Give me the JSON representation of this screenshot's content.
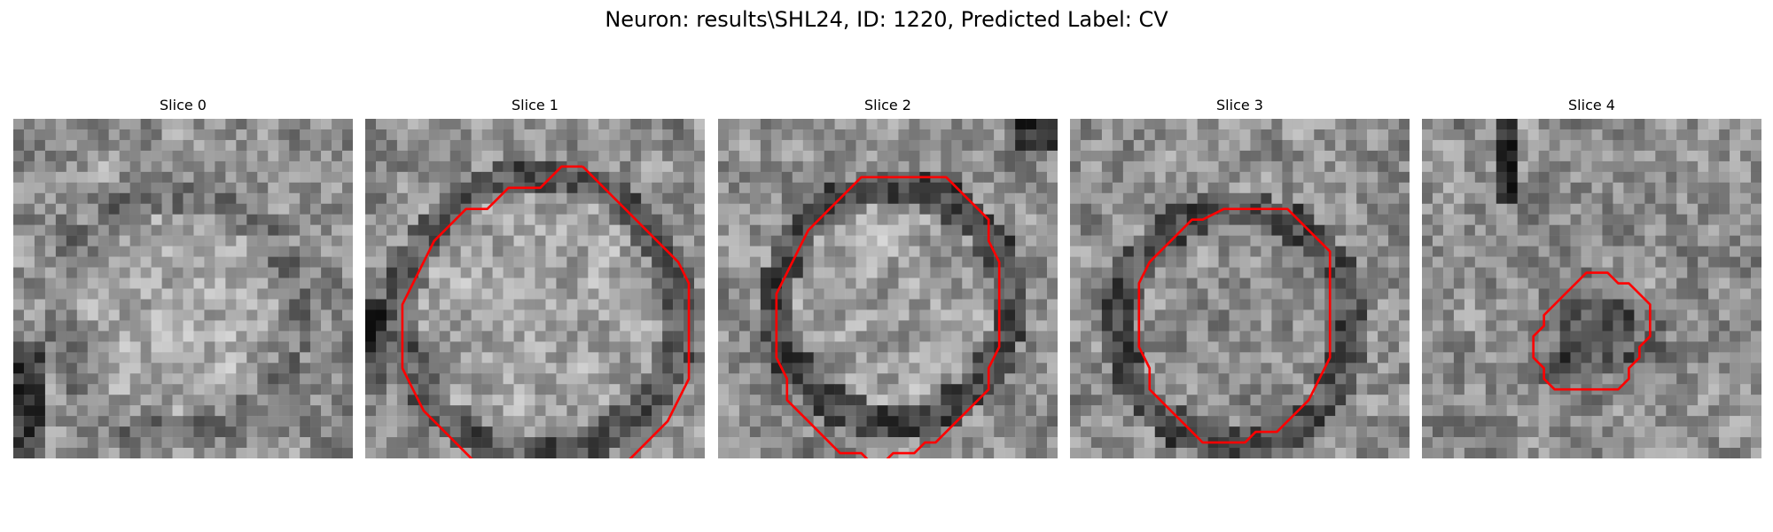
{
  "figure": {
    "title": "Neuron: results\\SHL24, ID: 1220, Predicted Label: CV"
  },
  "outline_color": "#ff0000",
  "panels": [
    {
      "title": "Slice 0",
      "contour": []
    },
    {
      "title": "Slice 1",
      "contour": [
        [
          20,
          4
        ],
        [
          18,
          4
        ],
        [
          17,
          5
        ],
        [
          16,
          6
        ],
        [
          13,
          6
        ],
        [
          12,
          7
        ],
        [
          11,
          8
        ],
        [
          9,
          8
        ],
        [
          7,
          10
        ],
        [
          6,
          11
        ],
        [
          5,
          13
        ],
        [
          4,
          15
        ],
        [
          3,
          17
        ],
        [
          3,
          20
        ],
        [
          3,
          23
        ],
        [
          4,
          25
        ],
        [
          5,
          27
        ],
        [
          6,
          28
        ],
        [
          7,
          29
        ],
        [
          8,
          30
        ],
        [
          9,
          31
        ],
        [
          10,
          32
        ],
        [
          12,
          32
        ],
        [
          13,
          33
        ]
      ],
      "contour2": [
        [
          20,
          4
        ],
        [
          21,
          5
        ],
        [
          22,
          6
        ],
        [
          23,
          7
        ],
        [
          24,
          8
        ],
        [
          25,
          9
        ],
        [
          26,
          10
        ],
        [
          27,
          11
        ],
        [
          28,
          12
        ],
        [
          29,
          13
        ],
        [
          30,
          15
        ],
        [
          30,
          18
        ],
        [
          30,
          21
        ],
        [
          30,
          24
        ],
        [
          29,
          26
        ],
        [
          28,
          28
        ],
        [
          27,
          29
        ],
        [
          26,
          30
        ],
        [
          25,
          31
        ],
        [
          24,
          32
        ],
        [
          23,
          33
        ]
      ]
    },
    {
      "title": "Slice 2",
      "contour": [
        [
          15,
          5
        ],
        [
          17,
          5
        ],
        [
          19,
          5
        ],
        [
          21,
          5
        ],
        [
          22,
          6
        ],
        [
          23,
          7
        ],
        [
          24,
          8
        ],
        [
          25,
          9
        ],
        [
          25,
          11
        ],
        [
          26,
          13
        ],
        [
          26,
          15
        ],
        [
          26,
          17
        ],
        [
          26,
          19
        ],
        [
          26,
          21
        ],
        [
          25,
          23
        ],
        [
          25,
          25
        ],
        [
          24,
          26
        ],
        [
          23,
          27
        ],
        [
          22,
          28
        ],
        [
          21,
          29
        ],
        [
          20,
          30
        ],
        [
          19,
          30
        ],
        [
          18,
          31
        ],
        [
          16,
          31
        ],
        [
          15,
          32
        ],
        [
          14,
          32
        ],
        [
          13,
          31
        ],
        [
          11,
          31
        ],
        [
          10,
          30
        ],
        [
          9,
          29
        ],
        [
          8,
          28
        ],
        [
          7,
          27
        ],
        [
          6,
          26
        ],
        [
          6,
          24
        ],
        [
          5,
          22
        ],
        [
          5,
          20
        ],
        [
          5,
          18
        ],
        [
          5,
          16
        ],
        [
          6,
          14
        ],
        [
          7,
          12
        ],
        [
          8,
          10
        ],
        [
          9,
          9
        ],
        [
          10,
          8
        ],
        [
          11,
          7
        ],
        [
          12,
          6
        ],
        [
          13,
          5
        ]
      ]
    },
    {
      "title": "Slice 3",
      "contour": [
        [
          14,
          8
        ],
        [
          16,
          8
        ],
        [
          18,
          8
        ],
        [
          20,
          8
        ],
        [
          21,
          9
        ],
        [
          22,
          10
        ],
        [
          23,
          11
        ],
        [
          24,
          12
        ],
        [
          24,
          14
        ],
        [
          24,
          16
        ],
        [
          24,
          18
        ],
        [
          24,
          20
        ],
        [
          24,
          22
        ],
        [
          23,
          24
        ],
        [
          22,
          26
        ],
        [
          21,
          27
        ],
        [
          20,
          28
        ],
        [
          19,
          29
        ],
        [
          17,
          29
        ],
        [
          16,
          30
        ],
        [
          14,
          30
        ],
        [
          12,
          30
        ],
        [
          11,
          29
        ],
        [
          10,
          28
        ],
        [
          9,
          27
        ],
        [
          8,
          26
        ],
        [
          7,
          25
        ],
        [
          7,
          23
        ],
        [
          6,
          21
        ],
        [
          6,
          19
        ],
        [
          6,
          17
        ],
        [
          6,
          15
        ],
        [
          7,
          13
        ],
        [
          8,
          12
        ],
        [
          9,
          11
        ],
        [
          10,
          10
        ],
        [
          11,
          9
        ],
        [
          12,
          9
        ]
      ]
    },
    {
      "title": "Slice 4",
      "contour": [
        [
          15,
          14
        ],
        [
          16,
          14
        ],
        [
          17,
          14
        ],
        [
          18,
          15
        ],
        [
          19,
          15
        ],
        [
          20,
          16
        ],
        [
          21,
          17
        ],
        [
          21,
          18
        ],
        [
          21,
          19
        ],
        [
          21,
          20
        ],
        [
          20,
          21
        ],
        [
          20,
          22
        ],
        [
          19,
          23
        ],
        [
          19,
          24
        ],
        [
          18,
          25
        ],
        [
          17,
          25
        ],
        [
          16,
          25
        ],
        [
          15,
          25
        ],
        [
          14,
          25
        ],
        [
          13,
          25
        ],
        [
          12,
          25
        ],
        [
          11,
          24
        ],
        [
          11,
          23
        ],
        [
          10,
          22
        ],
        [
          10,
          21
        ],
        [
          10,
          20
        ],
        [
          11,
          19
        ],
        [
          11,
          18
        ],
        [
          12,
          17
        ],
        [
          13,
          16
        ],
        [
          14,
          15
        ]
      ]
    }
  ]
}
